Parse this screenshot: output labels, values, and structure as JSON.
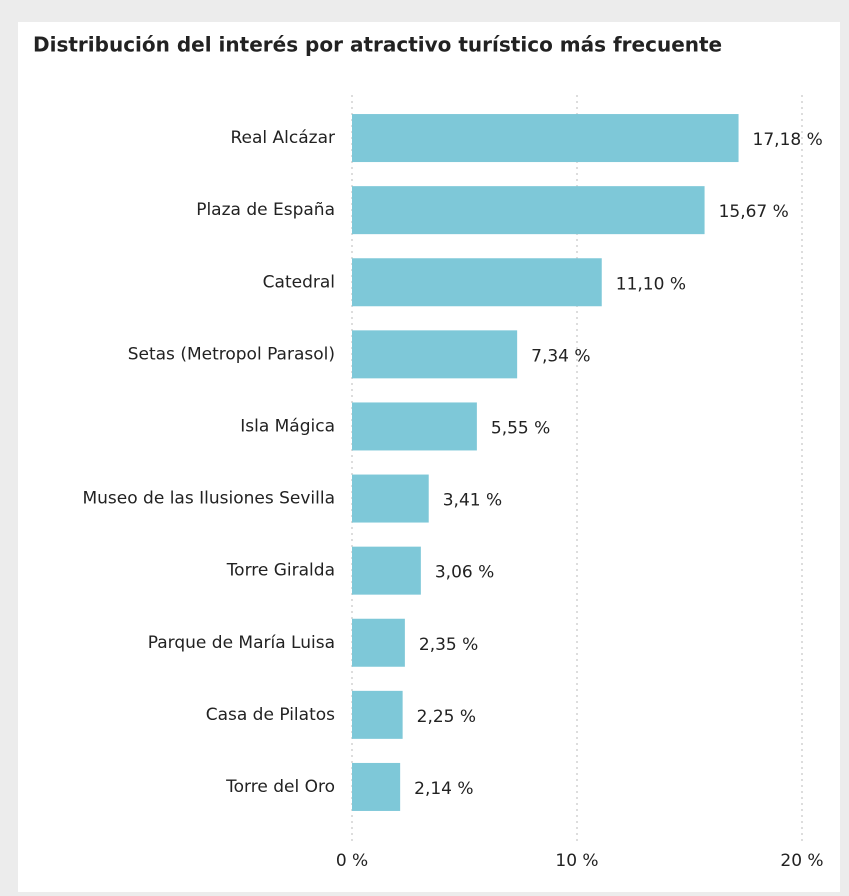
{
  "chart_data": {
    "type": "bar",
    "orientation": "horizontal",
    "title": "Distribución del interés por atractivo turístico más frecuente",
    "categories": [
      "Real Alcázar",
      "Plaza de España",
      "Catedral",
      "Setas (Metropol Parasol)",
      "Isla Mágica",
      "Museo de las Ilusiones Sevilla",
      "Torre Giralda",
      "Parque de María Luisa",
      "Casa de Pilatos",
      "Torre del Oro"
    ],
    "values": [
      17.18,
      15.67,
      11.1,
      7.34,
      5.55,
      3.41,
      3.06,
      2.35,
      2.25,
      2.14
    ],
    "value_labels": [
      "17,18 %",
      "15,67 %",
      "11,10 %",
      "7,34 %",
      "5,55 %",
      "3,41 %",
      "3,06 %",
      "2,35 %",
      "2,25 %",
      "2,14 %"
    ],
    "color": "#7ec8d8",
    "xlim": [
      0,
      20
    ],
    "xticks": [
      {
        "value": 0,
        "label": "0 %"
      },
      {
        "value": 10,
        "label": "10 %"
      },
      {
        "value": 20,
        "label": "20 %"
      }
    ],
    "grid": true
  }
}
